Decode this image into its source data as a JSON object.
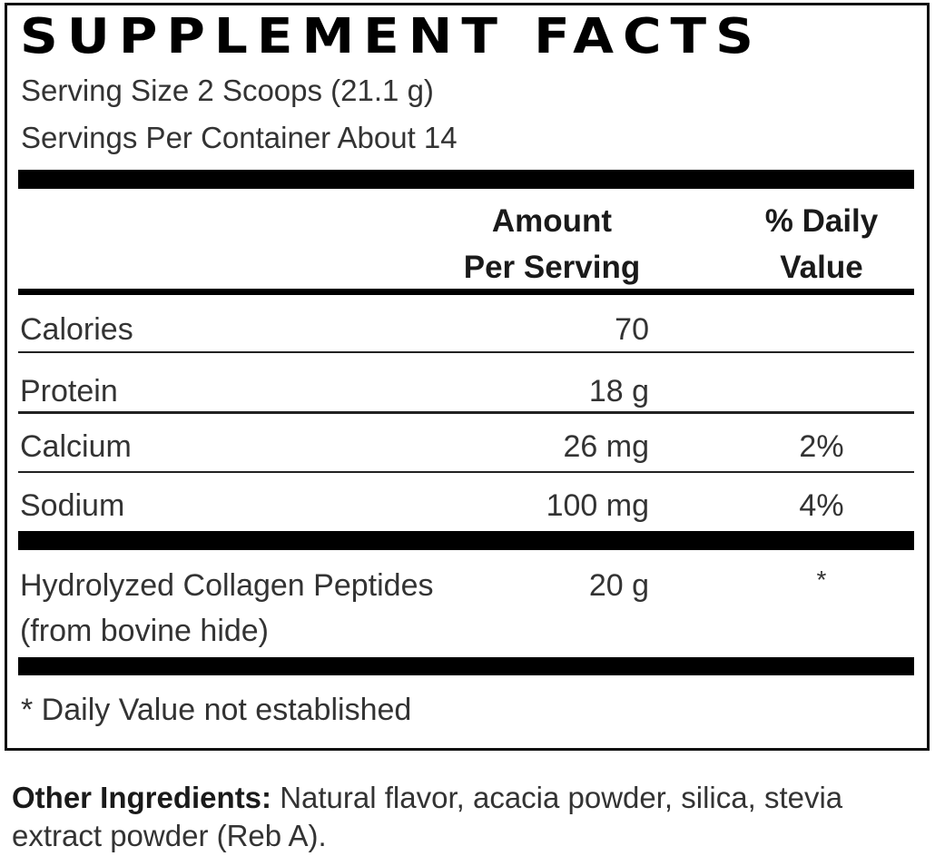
{
  "label": {
    "title": "SUPPLEMENT FACTS",
    "serving_size": "Serving Size 2 Scoops (21.1 g)",
    "servings_per_container": "Servings Per Container About 14",
    "header_amount_line1": "Amount",
    "header_amount_line2": "Per Serving",
    "header_dv_line1": "% Daily",
    "header_dv_line2": "Value",
    "rows": [
      {
        "name": "Calories",
        "amount": "70",
        "dv": ""
      },
      {
        "name": "Protein",
        "amount": "18 g",
        "dv": ""
      },
      {
        "name": "Calcium",
        "amount": "26 mg",
        "dv": "2%"
      },
      {
        "name": "Sodium",
        "amount": "100 mg",
        "dv": "4%"
      },
      {
        "name": "Hydrolyzed Collagen Peptides",
        "name_line2": "(from bovine hide)",
        "amount": "20 g",
        "dv": "*"
      }
    ],
    "footnote": "* Daily Value not established"
  },
  "other_ingredients": {
    "heading": "Other Ingredients:",
    "text": "Natural flavor, acacia powder, silica, stevia extract powder (Reb A)."
  }
}
